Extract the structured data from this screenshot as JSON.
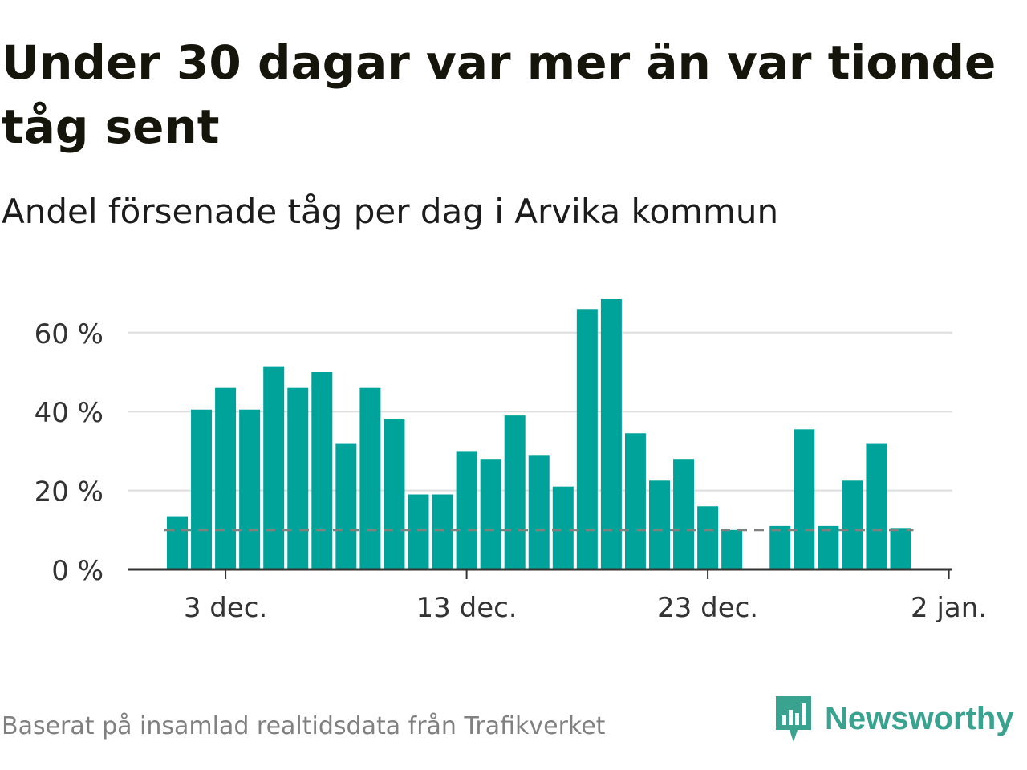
{
  "title": "Under 30 dagar var mer än var tionde tåg sent",
  "subtitle": "Andel försenade tåg per dag i Arvika kommun",
  "source": "Baserat på insamlad realtidsdata från Trafikverket",
  "brand": {
    "name": "Newsworthy",
    "logo_icon": "newsworthy-bar-chart-icon",
    "color": "#3aa38f"
  },
  "colors": {
    "bar": "#00a39a",
    "grid": "#dddddd",
    "axis": "#333333",
    "reference_line": "#808080"
  },
  "chart_data": {
    "type": "bar",
    "x_start_day": 1,
    "x": [
      "1 dec.",
      "2 dec.",
      "3 dec.",
      "4 dec.",
      "5 dec.",
      "6 dec.",
      "7 dec.",
      "8 dec.",
      "9 dec.",
      "10 dec.",
      "11 dec.",
      "12 dec.",
      "13 dec.",
      "14 dec.",
      "15 dec.",
      "16 dec.",
      "17 dec.",
      "18 dec.",
      "19 dec.",
      "20 dec.",
      "21 dec.",
      "22 dec.",
      "23 dec.",
      "24 dec.",
      "25 dec.",
      "26 dec.",
      "27 dec.",
      "28 dec.",
      "29 dec.",
      "30 dec.",
      "31 dec.",
      "1 jan."
    ],
    "values": [
      13.5,
      40.5,
      46,
      40.5,
      51.5,
      46,
      50,
      32,
      46,
      38,
      19,
      19,
      30,
      28,
      39,
      29,
      21,
      66,
      68.5,
      34.5,
      22.5,
      28,
      16,
      10,
      null,
      11,
      35.5,
      11,
      22.5,
      32,
      10.5,
      null
    ],
    "reference_value": 10,
    "ylim": [
      0,
      70
    ],
    "yticks": [
      0,
      20,
      40,
      60
    ],
    "ytick_labels": [
      "0 %",
      "20 %",
      "40 %",
      "60 %"
    ],
    "xticks": [
      {
        "day": 3,
        "label": "3 dec."
      },
      {
        "day": 13,
        "label": "13 dec."
      },
      {
        "day": 23,
        "label": "23 dec."
      },
      {
        "day": 33,
        "label": "2 jan."
      }
    ],
    "grid": true,
    "xlabel": "",
    "ylabel": ""
  }
}
